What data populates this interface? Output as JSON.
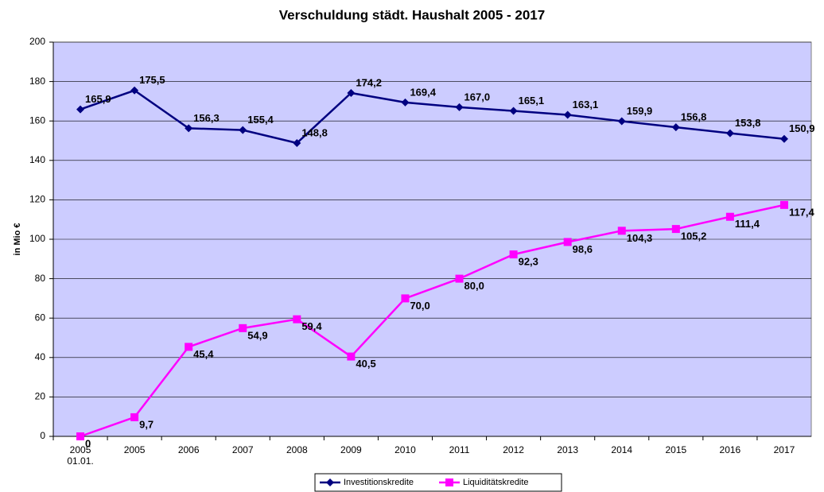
{
  "chart_data": {
    "type": "line",
    "title": "Verschuldung städt. Haushalt 2005 - 2017",
    "y_label": "in Mio €",
    "categories": [
      "2005",
      "2005",
      "2006",
      "2007",
      "2008",
      "2009",
      "2010",
      "2011",
      "2012",
      "2013",
      "2014",
      "2015",
      "2016",
      "2017"
    ],
    "first_category_note": "01.01.",
    "series": [
      {
        "name": "Investitionskredite",
        "color": "#000080",
        "marker": "diamond",
        "values": [
          165.9,
          175.5,
          156.3,
          155.4,
          148.8,
          174.2,
          169.4,
          167.0,
          165.1,
          163.1,
          159.9,
          156.8,
          153.8,
          150.9
        ],
        "value_labels": [
          "165,9",
          "175,5",
          "156,3",
          "155,4",
          "148,8",
          "174,2",
          "169,4",
          "167,0",
          "165,1",
          "163,1",
          "159,9",
          "156,8",
          "153,8",
          "150,9"
        ]
      },
      {
        "name": "Liquiditätskredite",
        "color": "#ff00ff",
        "marker": "square",
        "values": [
          0,
          9.7,
          45.4,
          54.9,
          59.4,
          40.5,
          70.0,
          80.0,
          92.3,
          98.6,
          104.3,
          105.2,
          111.4,
          117.4
        ],
        "value_labels": [
          "0",
          "9,7",
          "45,4",
          "54,9",
          "59,4",
          "40,5",
          "70,0",
          "80,0",
          "92,3",
          "98,6",
          "104,3",
          "105,2",
          "111,4",
          "117,4"
        ]
      }
    ],
    "ylim": [
      0,
      200
    ],
    "yticks": [
      0,
      20,
      40,
      60,
      80,
      100,
      120,
      140,
      160,
      180,
      200
    ],
    "grid": true,
    "legend": "bottom",
    "plot_background": "#ccccff"
  }
}
